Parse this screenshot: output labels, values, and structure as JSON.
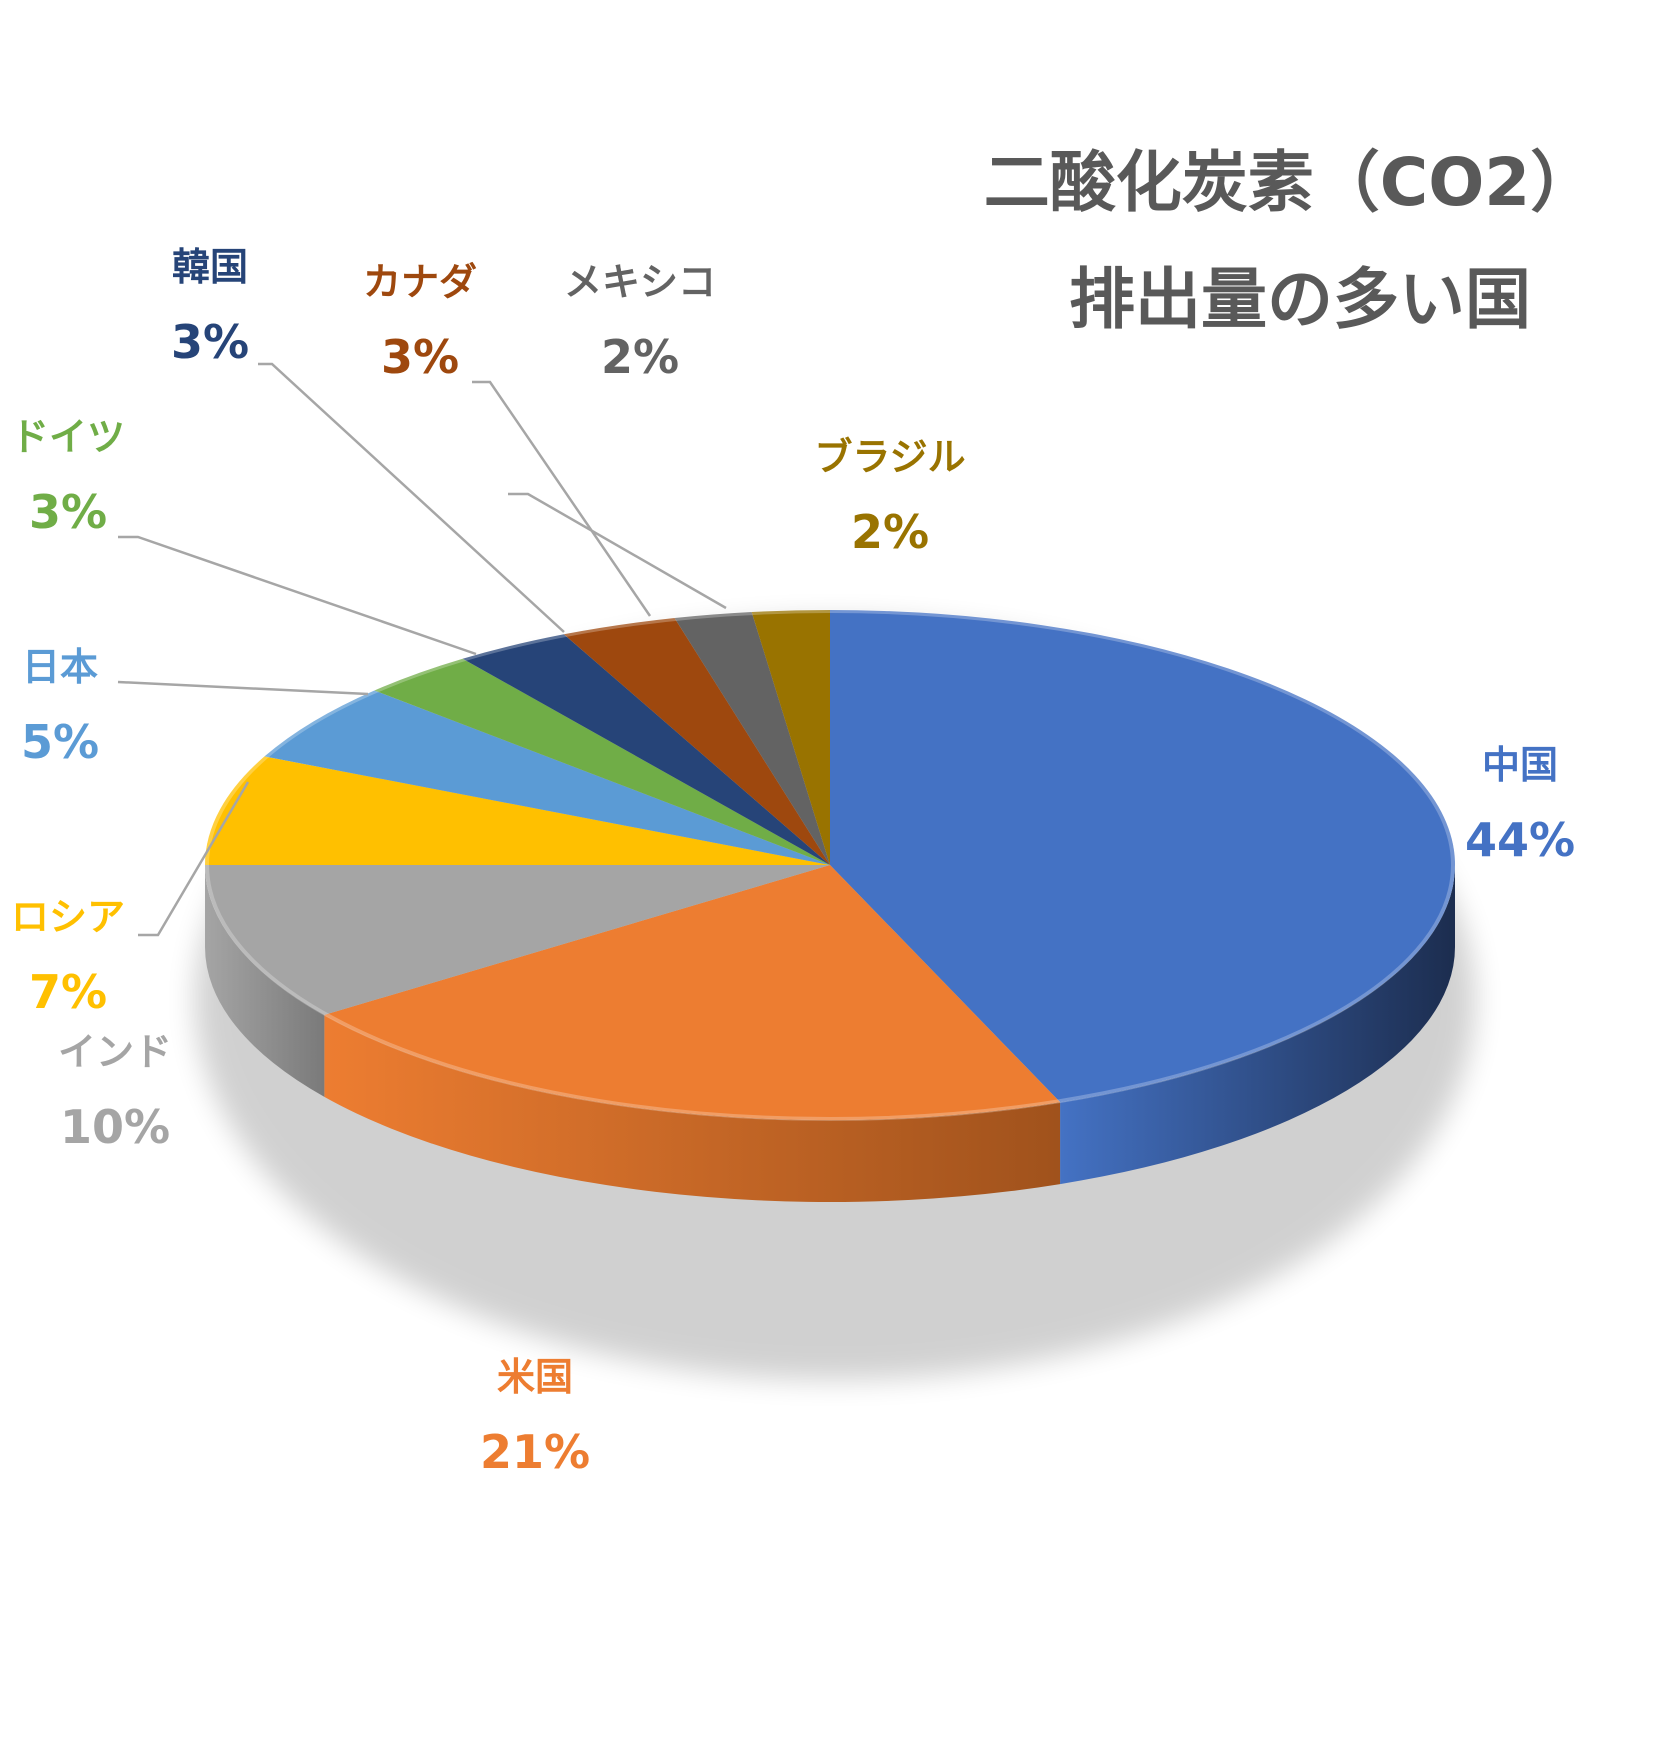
{
  "chart_data": {
    "type": "pie",
    "title_lines": [
      "二酸化炭素（CO2）",
      "排出量の多い国"
    ],
    "slices": [
      {
        "name": "中国",
        "value": 44,
        "label": "44%",
        "color": "#4472C4",
        "side": "#1C2D4F"
      },
      {
        "name": "米国",
        "value": 21,
        "label": "21%",
        "color": "#ED7D31",
        "side": "#A0521C"
      },
      {
        "name": "インド",
        "value": 10,
        "label": "10%",
        "color": "#A5A5A5",
        "side": "#7A7A7A"
      },
      {
        "name": "ロシア",
        "value": 7,
        "label": "7%",
        "color": "#FFC000",
        "side": "#B38600"
      },
      {
        "name": "日本",
        "value": 5,
        "label": "5%",
        "color": "#5B9BD5",
        "side": "#3A6E9E"
      },
      {
        "name": "ドイツ",
        "value": 3,
        "label": "3%",
        "color": "#70AD47",
        "side": "#4E7A31"
      },
      {
        "name": "韓国",
        "value": 3,
        "label": "3%",
        "color": "#264478",
        "side": "#172A4A"
      },
      {
        "name": "カナダ",
        "value": 3,
        "label": "3%",
        "color": "#9E480E",
        "side": "#6B3009"
      },
      {
        "name": "メキシコ",
        "value": 2,
        "label": "2%",
        "color": "#636363",
        "side": "#404040"
      },
      {
        "name": "ブラジル",
        "value": 2,
        "label": "2%",
        "color": "#997300",
        "side": "#6B5000"
      }
    ],
    "label_colors": {
      "中国": "#4472C4",
      "米国": "#ED7D31",
      "インド": "#A5A5A5",
      "ロシア": "#FFC000",
      "日本": "#5B9BD5",
      "ドイツ": "#70AD47",
      "韓国": "#264478",
      "カナダ": "#9E480E",
      "メキシコ": "#636363",
      "ブラジル": "#997300"
    },
    "legend": "none",
    "style": "3d-pie"
  }
}
